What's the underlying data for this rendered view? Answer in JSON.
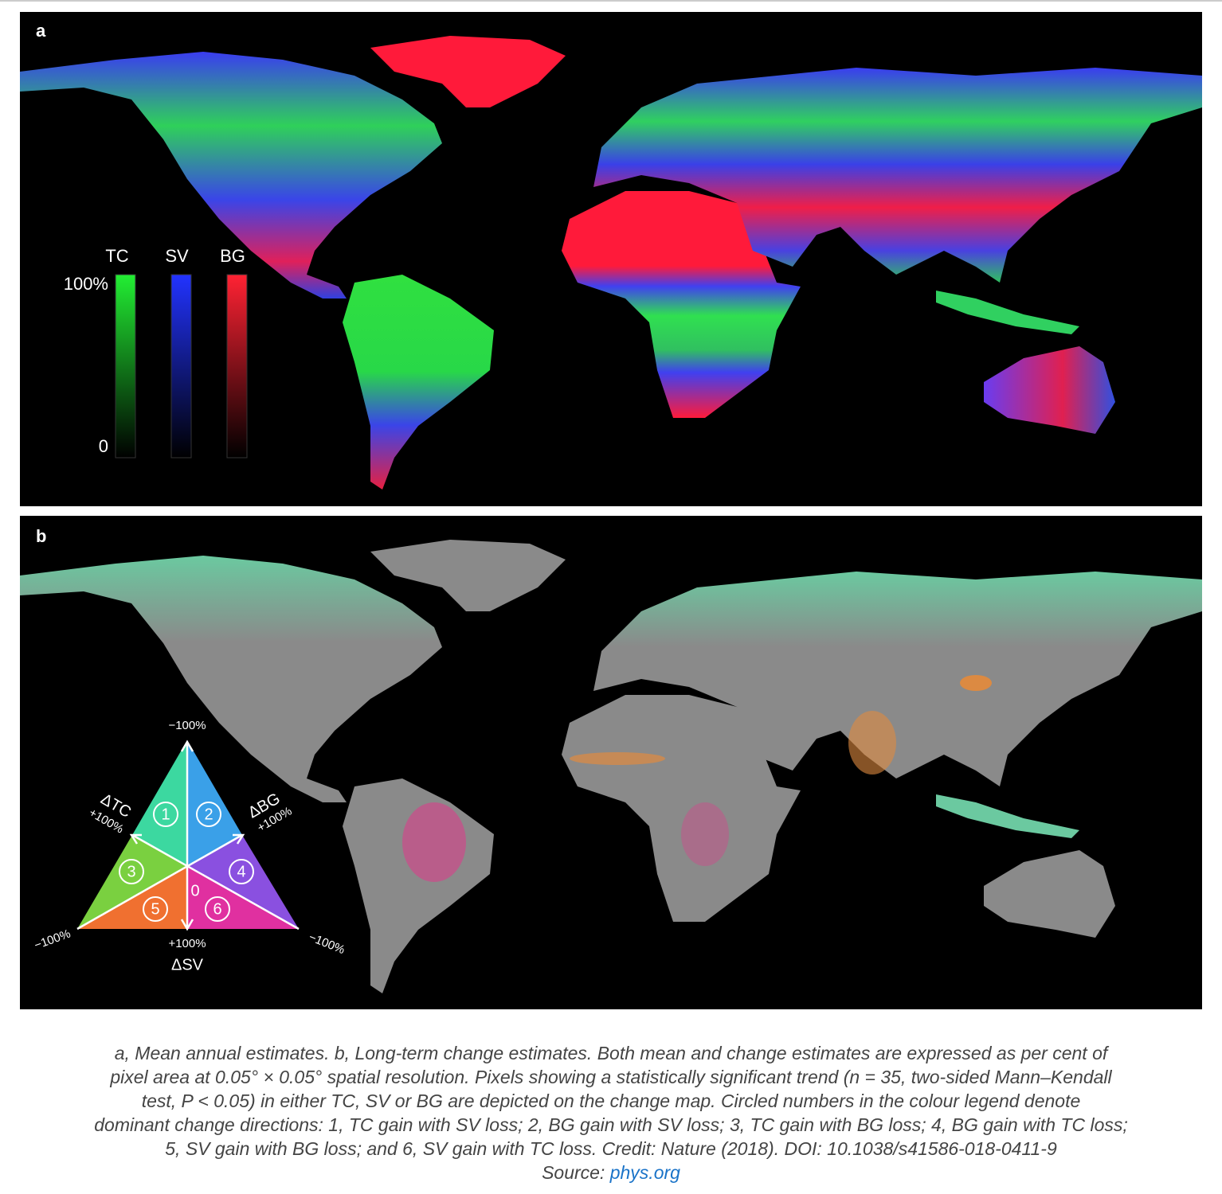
{
  "panels": [
    {
      "label": "a",
      "legend": {
        "bars": [
          "TC",
          "SV",
          "BG"
        ],
        "max": "100%",
        "min": "0"
      }
    },
    {
      "label": "b",
      "legend": {
        "top": "−100%",
        "tc_axis": "ΔTC",
        "tc_value": "+100%",
        "bg_axis": "ΔBG",
        "bg_value": "+100%",
        "left_corner": "−100%",
        "right_corner": "−100%",
        "sv_value": "+100%",
        "sv_axis": "ΔSV",
        "center": "0",
        "directions": [
          "1",
          "2",
          "3",
          "4",
          "5",
          "6"
        ]
      }
    }
  ],
  "caption": {
    "lines": [
      "a, Mean annual estimates. b, Long-term change estimates. Both mean and change estimates are expressed as per cent of",
      "pixel area at 0.05° × 0.05° spatial resolution. Pixels showing a statistically significant trend (n = 35, two-sided Mann–Kendall",
      "test, P < 0.05) in either TC, SV or BG are depicted on the change map. Circled numbers in the colour legend denote",
      "dominant change directions: 1, TC gain with SV loss; 2, BG gain with SV loss; 3, TC gain with BG loss; 4, BG gain with TC loss;",
      "5, SV gain with BG loss; and 6, SV gain with TC loss. Credit: Nature (2018). DOI: 10.1038/s41586-018-0411-9"
    ],
    "source_prefix": "Source:",
    "source_link": "phys.org"
  }
}
